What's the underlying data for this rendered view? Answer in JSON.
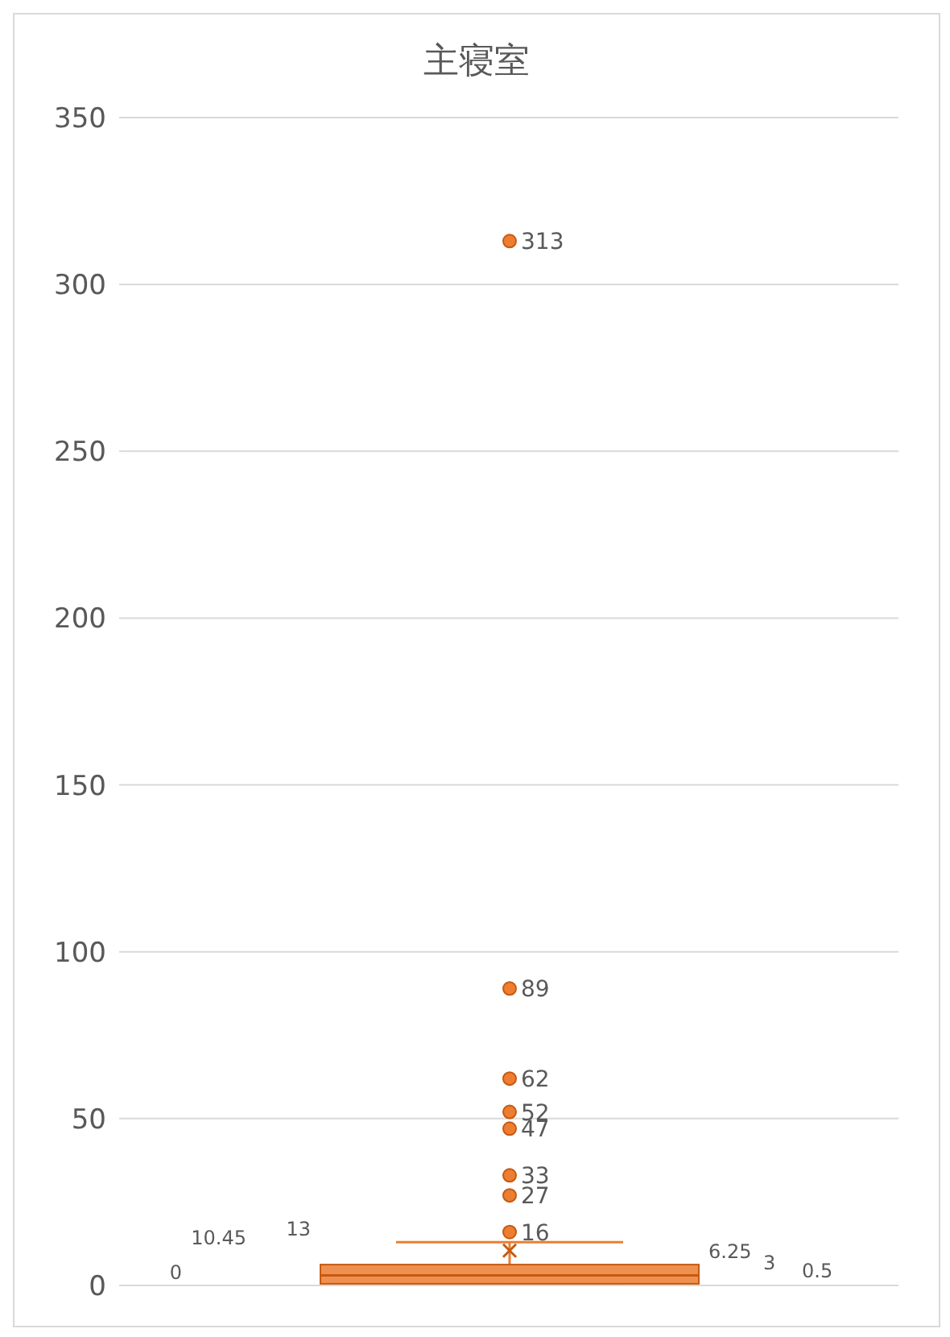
{
  "chart_data": {
    "type": "box",
    "title": "主寝室",
    "categories": [
      null
    ],
    "color": "#ed7d31",
    "boxes": [
      {
        "low": 0,
        "q1": 0.5,
        "median": 3,
        "q3": 6.25,
        "high": 13,
        "mean": 10.45,
        "outliers": [
          313,
          89,
          62,
          52,
          47,
          33,
          27,
          16
        ]
      }
    ],
    "ylim": [
      0,
      350
    ],
    "yticks": [
      0,
      50,
      100,
      150,
      200,
      250,
      300,
      350
    ],
    "grid": "y",
    "data_labels": true,
    "annotations": [
      "313",
      "89",
      "62",
      "52",
      "47",
      "33",
      "27",
      "16",
      "13",
      "10.45",
      "6.25",
      "3",
      "0.5",
      "0"
    ]
  }
}
